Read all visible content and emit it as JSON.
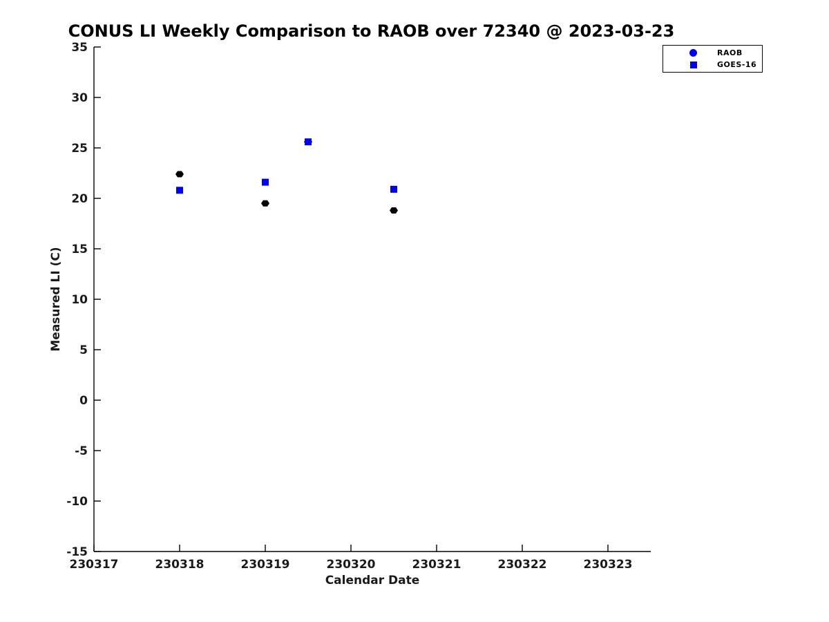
{
  "title": "CONUS LI Weekly Comparison to RAOB over 72340 @ 2023-03-23",
  "chart_data": {
    "type": "scatter",
    "title": "CONUS LI Weekly Comparison to RAOB over 72340 @ 2023-03-23",
    "xlabel": "Calendar Date",
    "ylabel": "Measured LI (C)",
    "xlim": [
      230317,
      230323.5
    ],
    "ylim": [
      -15,
      35
    ],
    "xticks": [
      230317,
      230318,
      230319,
      230320,
      230321,
      230322,
      230323
    ],
    "yticks": [
      35,
      30,
      25,
      20,
      15,
      10,
      5,
      0,
      -5,
      -10,
      -15
    ],
    "grid": false,
    "legend_position": "top-right",
    "series": [
      {
        "name": "RAOB",
        "marker": "hexagon",
        "color": "#000000",
        "legend_marker": "circle",
        "legend_color": "#0000ee",
        "points": [
          {
            "x": 230318.0,
            "y": 22.4
          },
          {
            "x": 230319.0,
            "y": 19.5
          },
          {
            "x": 230319.5,
            "y": 25.6
          },
          {
            "x": 230320.5,
            "y": 18.8
          }
        ]
      },
      {
        "name": "GOES-16",
        "marker": "square",
        "color": "#0000ee",
        "legend_marker": "square",
        "legend_color": "#0000ee",
        "points": [
          {
            "x": 230318.0,
            "y": 20.8
          },
          {
            "x": 230319.0,
            "y": 21.6
          },
          {
            "x": 230319.5,
            "y": 25.6
          },
          {
            "x": 230320.5,
            "y": 20.9
          }
        ]
      }
    ]
  },
  "colors": {
    "axis": "#000000",
    "tick_label": "#1a1a1a",
    "background": "#ffffff"
  }
}
